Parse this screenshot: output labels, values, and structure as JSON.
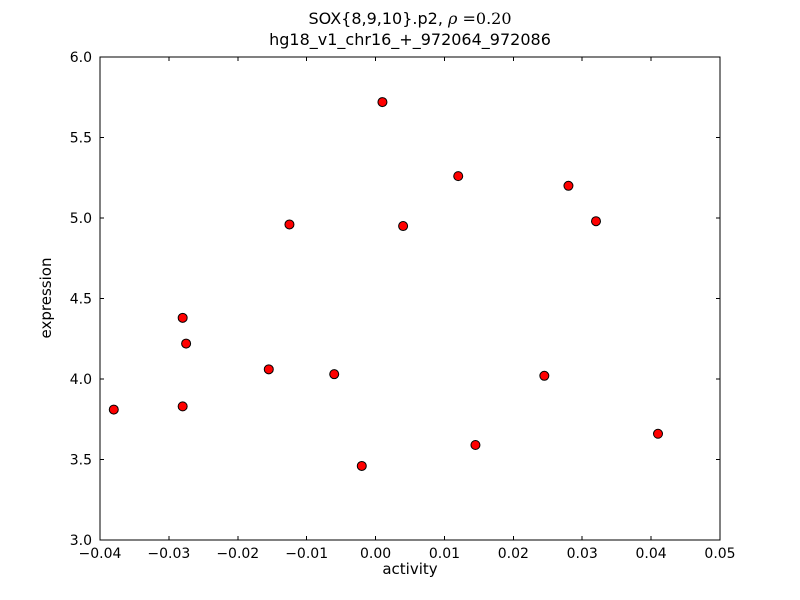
{
  "figure": {
    "title_line1_prefix": "SOX{8,9,10}.p2, ",
    "title_rho": "ρ",
    "title_line1_suffix": " =0.20",
    "title_line2": "hg18_v1_chr16_+_972064_972086",
    "xlabel": "activity",
    "ylabel": "expression"
  },
  "chart_data": {
    "type": "scatter",
    "title": "SOX{8,9,10}.p2, ρ =0.20",
    "subtitle": "hg18_v1_chr16_+_972064_972086",
    "xlabel": "activity",
    "ylabel": "expression",
    "xlim": [
      -0.04,
      0.05
    ],
    "ylim": [
      3.0,
      6.0
    ],
    "xticks": [
      -0.04,
      -0.03,
      -0.02,
      -0.01,
      0.0,
      0.01,
      0.02,
      0.03,
      0.04,
      0.05
    ],
    "xtick_labels": [
      "−0.04",
      "−0.03",
      "−0.02",
      "−0.01",
      "0.00",
      "0.01",
      "0.02",
      "0.03",
      "0.04",
      "0.05"
    ],
    "yticks": [
      3.0,
      3.5,
      4.0,
      4.5,
      5.0,
      5.5,
      6.0
    ],
    "ytick_labels": [
      "3.0",
      "3.5",
      "4.0",
      "4.5",
      "5.0",
      "5.5",
      "6.0"
    ],
    "grid": false,
    "legend": "none",
    "marker": {
      "fill": "#ff0000",
      "edge": "#000000"
    },
    "points": [
      {
        "x": -0.038,
        "y": 3.81
      },
      {
        "x": -0.028,
        "y": 3.83
      },
      {
        "x": -0.028,
        "y": 4.38
      },
      {
        "x": -0.0275,
        "y": 4.22
      },
      {
        "x": -0.0155,
        "y": 4.06
      },
      {
        "x": -0.0125,
        "y": 4.96
      },
      {
        "x": -0.006,
        "y": 4.03
      },
      {
        "x": -0.002,
        "y": 3.46
      },
      {
        "x": 0.001,
        "y": 5.72
      },
      {
        "x": 0.004,
        "y": 4.95
      },
      {
        "x": 0.012,
        "y": 5.26
      },
      {
        "x": 0.0145,
        "y": 3.59
      },
      {
        "x": 0.0245,
        "y": 4.02
      },
      {
        "x": 0.028,
        "y": 5.2
      },
      {
        "x": 0.032,
        "y": 4.98
      },
      {
        "x": 0.041,
        "y": 3.66
      }
    ]
  }
}
